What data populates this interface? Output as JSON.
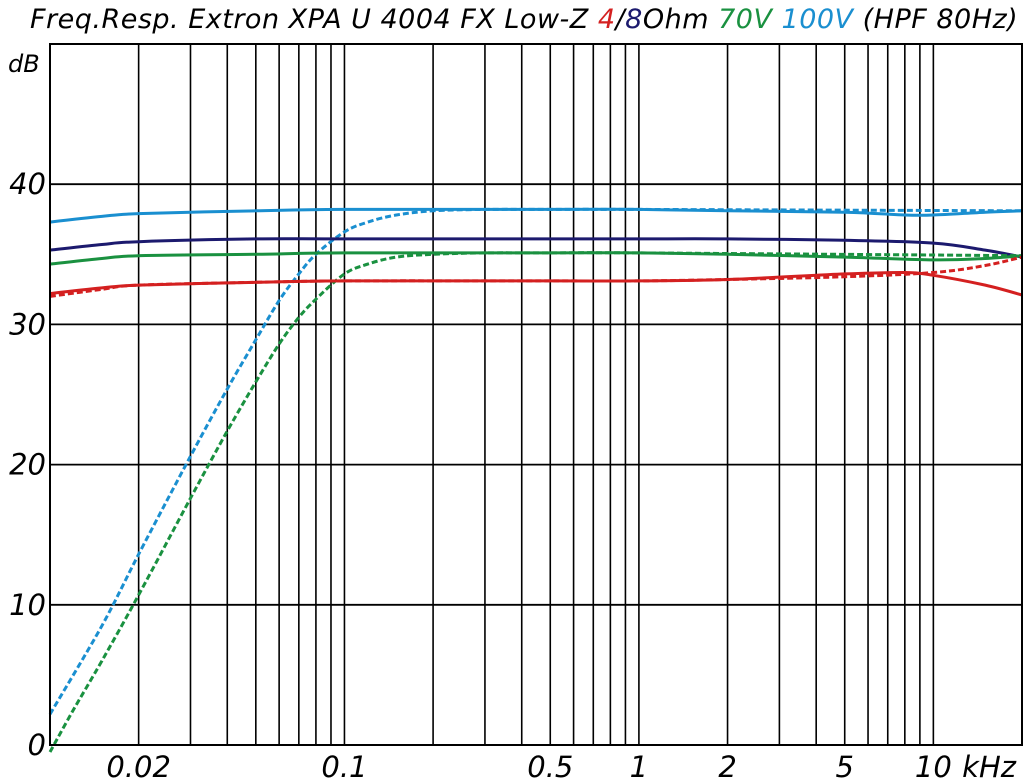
{
  "chart_data": {
    "type": "line",
    "title_parts": [
      {
        "text": "Freq.Resp. Extron XPA U 4004 FX Low-Z ",
        "color": "#000000"
      },
      {
        "text": "4",
        "color": "#d42020"
      },
      {
        "text": "/",
        "color": "#000000"
      },
      {
        "text": "8",
        "color": "#1c1a6e"
      },
      {
        "text": "Ohm ",
        "color": "#000000"
      },
      {
        "text": "70V ",
        "color": "#1a9140"
      },
      {
        "text": "100V ",
        "color": "#1a8fd0"
      },
      {
        "text": "(HPF 80Hz)",
        "color": "#000000"
      }
    ],
    "ylabel": "dB",
    "xlabel": "kHz",
    "x_scale": "log",
    "xlim": [
      0.01,
      20
    ],
    "ylim": [
      0,
      50
    ],
    "y_ticks": [
      0,
      10,
      20,
      30,
      40
    ],
    "x_ticks": [
      {
        "value": 0.02,
        "label": "0.02"
      },
      {
        "value": 0.1,
        "label": "0.1"
      },
      {
        "value": 0.5,
        "label": "0.5"
      },
      {
        "value": 1,
        "label": "1"
      },
      {
        "value": 2,
        "label": "2"
      },
      {
        "value": 5,
        "label": "5"
      },
      {
        "value": 10,
        "label": "10"
      }
    ],
    "grid": true,
    "series": [
      {
        "color": "#1a8fd0",
        "dash": false,
        "x": [
          0.01,
          0.015,
          0.02,
          0.05,
          0.1,
          0.5,
          1,
          2,
          5,
          8,
          10,
          15,
          20
        ],
        "y": [
          37.3,
          37.7,
          37.9,
          38.1,
          38.2,
          38.2,
          38.2,
          38.1,
          38.0,
          37.8,
          37.8,
          38.0,
          38.1
        ]
      },
      {
        "color": "#1a8fd0",
        "dash": true,
        "x": [
          0.01,
          0.015,
          0.02,
          0.03,
          0.04,
          0.05,
          0.06,
          0.07,
          0.08,
          0.1,
          0.12,
          0.15,
          0.2,
          0.3,
          0.5,
          1,
          20
        ],
        "y": [
          2.2,
          8.5,
          13.6,
          20.6,
          25.4,
          28.9,
          31.7,
          33.6,
          35.0,
          36.6,
          37.3,
          37.8,
          38.1,
          38.2,
          38.2,
          38.2,
          38.1
        ]
      },
      {
        "color": "#1c1a6e",
        "dash": false,
        "x": [
          0.01,
          0.015,
          0.02,
          0.05,
          0.1,
          0.5,
          1,
          2,
          5,
          10,
          15,
          20
        ],
        "y": [
          35.3,
          35.7,
          35.9,
          36.1,
          36.1,
          36.1,
          36.1,
          36.1,
          36.0,
          35.8,
          35.3,
          34.8
        ]
      },
      {
        "color": "#1a9140",
        "dash": false,
        "x": [
          0.01,
          0.015,
          0.02,
          0.05,
          0.1,
          0.5,
          1,
          2,
          5,
          10,
          15,
          20
        ],
        "y": [
          34.3,
          34.7,
          34.9,
          35.0,
          35.1,
          35.1,
          35.1,
          35.0,
          34.8,
          34.6,
          34.7,
          34.9
        ]
      },
      {
        "color": "#1a9140",
        "dash": true,
        "x": [
          0.01,
          0.012,
          0.015,
          0.02,
          0.03,
          0.04,
          0.05,
          0.06,
          0.07,
          0.08,
          0.1,
          0.12,
          0.15,
          0.2,
          0.3,
          0.5,
          1,
          20
        ],
        "y": [
          -0.5,
          2.5,
          6.0,
          10.7,
          17.6,
          22.4,
          25.9,
          28.6,
          30.5,
          31.8,
          33.6,
          34.3,
          34.8,
          35.0,
          35.1,
          35.1,
          35.1,
          34.9
        ]
      },
      {
        "color": "#d42020",
        "dash": false,
        "x": [
          0.01,
          0.015,
          0.02,
          0.05,
          0.1,
          0.5,
          1,
          2,
          5,
          8,
          10,
          15,
          20
        ],
        "y": [
          32.2,
          32.6,
          32.8,
          33.0,
          33.1,
          33.1,
          33.1,
          33.2,
          33.6,
          33.7,
          33.5,
          32.8,
          32.1
        ]
      },
      {
        "color": "#d42020",
        "dash": true,
        "x": [
          0.01,
          0.015,
          0.02,
          0.05,
          0.1,
          0.5,
          1,
          2,
          5,
          10,
          15,
          20
        ],
        "y": [
          32.0,
          32.5,
          32.8,
          33.0,
          33.1,
          33.1,
          33.1,
          33.2,
          33.4,
          33.7,
          34.2,
          34.8
        ]
      }
    ]
  }
}
